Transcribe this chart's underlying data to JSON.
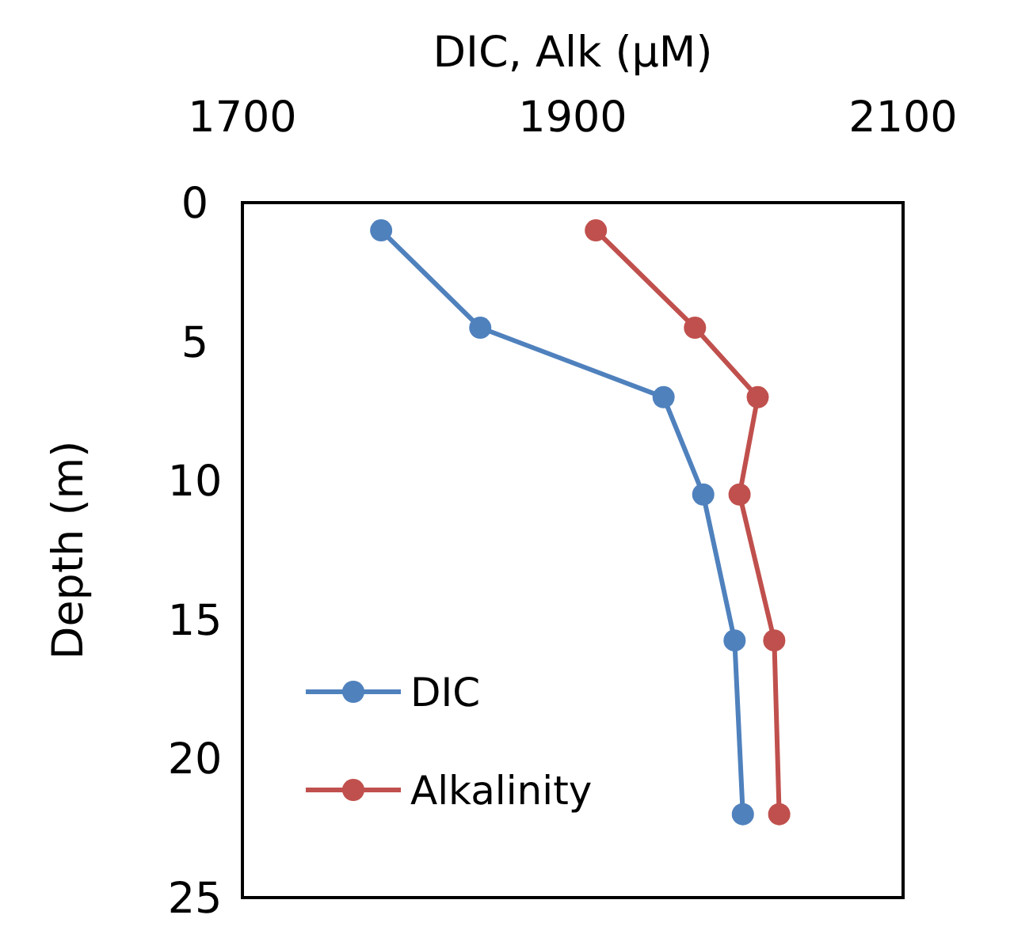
{
  "chart_data": {
    "type": "line",
    "xlabel": "DIC, Alk (µM)",
    "ylabel": "Depth (m)",
    "xlim": [
      1700,
      2100
    ],
    "xticks": [
      1700,
      1900,
      2100
    ],
    "ylim": [
      25,
      0
    ],
    "yticks": [
      0,
      5,
      10,
      15,
      20,
      25
    ],
    "marker": "circle",
    "line_style": "solid",
    "grid": false,
    "legend": "bottom left",
    "series": [
      {
        "name": "DIC",
        "color": "#4f81bd",
        "x": [
          1784,
          1844,
          1955,
          1979,
          1998,
          2003
        ],
        "values": [
          1,
          4.5,
          7,
          10.5,
          15.75,
          22
        ]
      },
      {
        "name": "Alkalinity",
        "color": "#c0504d",
        "x": [
          1914,
          1974,
          2012,
          2001,
          2022,
          2025
        ],
        "values": [
          1,
          4.5,
          7,
          10.5,
          15.75,
          22
        ]
      }
    ]
  }
}
